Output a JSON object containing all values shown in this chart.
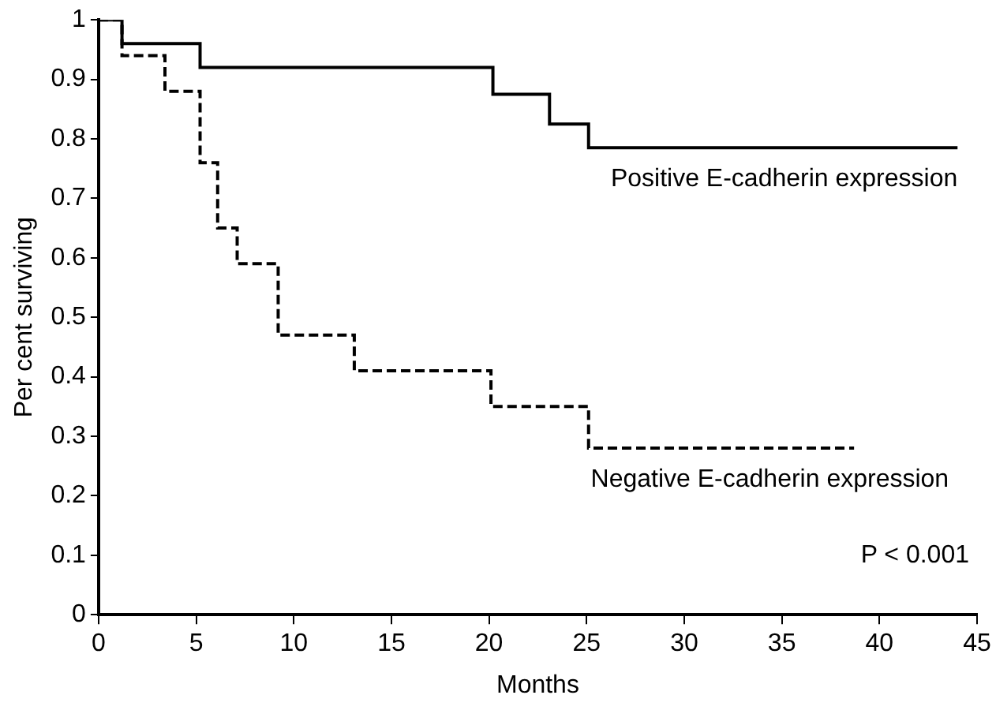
{
  "chart_data": {
    "type": "step",
    "xlabel": "Months",
    "ylabel": "Per cent surviving",
    "xlim": [
      0,
      45
    ],
    "xticks": [
      0,
      5,
      10,
      15,
      20,
      25,
      30,
      35,
      40,
      45
    ],
    "ylim": [
      0,
      1
    ],
    "yticks": [
      0,
      0.1,
      0.2,
      0.3,
      0.4,
      0.5,
      0.6,
      0.7,
      0.8,
      0.9,
      1
    ],
    "grid": false,
    "legend": false,
    "series": [
      {
        "name": "Positive E-cadherin expression",
        "color": "#000000",
        "line_style": "solid",
        "x": [
          0,
          1.2,
          5.2,
          20.2,
          23.1,
          25.1,
          44
        ],
        "values": [
          1,
          0.96,
          0.92,
          0.875,
          0.825,
          0.785,
          0.785
        ]
      },
      {
        "name": "Negative E-cadherin expression",
        "color": "#000000",
        "line_style": "dashed",
        "x": [
          0,
          1.2,
          3.4,
          5.2,
          6.1,
          7.1,
          9.2,
          13.1,
          20.1,
          25.1,
          38.7
        ],
        "values": [
          1,
          0.94,
          0.88,
          0.76,
          0.65,
          0.59,
          0.47,
          0.41,
          0.35,
          0.28,
          0.28
        ]
      }
    ],
    "annotations": [
      "P < 0.001"
    ]
  }
}
